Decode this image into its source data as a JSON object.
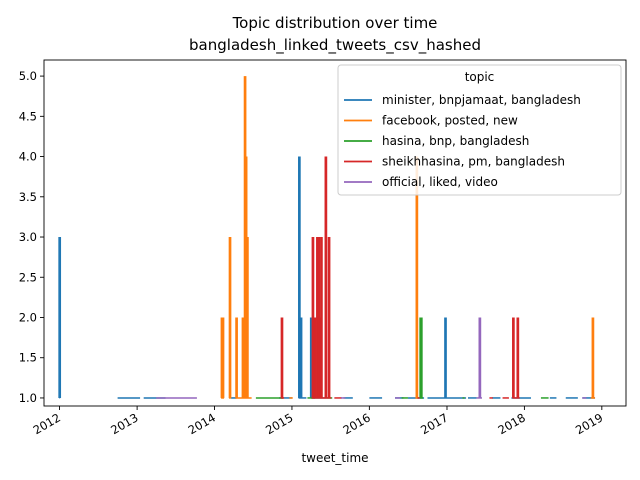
{
  "chart_data": {
    "type": "line",
    "title": "Topic distribution over time",
    "subtitle": "bangladesh_linked_tweets_csv_hashed",
    "xlabel": "tweet_time",
    "ylabel": "",
    "xlim": [
      "2011-10-20",
      "2019-04-25"
    ],
    "ylim": [
      0.9,
      5.2
    ],
    "x_ticks": [
      "2012",
      "2013",
      "2014",
      "2015",
      "2016",
      "2017",
      "2018",
      "2019"
    ],
    "y_ticks": [
      "1.0",
      "1.5",
      "2.0",
      "2.5",
      "3.0",
      "3.5",
      "4.0",
      "4.5",
      "5.0"
    ],
    "grid": false,
    "legend": {
      "title": "topic",
      "placement": "top-right"
    },
    "series": [
      {
        "name": "minister, bnpjamaat, bangladesh",
        "color": "#1f77b4",
        "spikes": [
          [
            "2012-01-02",
            3
          ],
          [
            "2015-02-05",
            4
          ],
          [
            "2015-02-08",
            2
          ],
          [
            "2015-02-13",
            2
          ],
          [
            "2015-04-02",
            2
          ],
          [
            "2016-12-25",
            2
          ]
        ],
        "baseline_segments": [
          [
            "2012-01-01",
            "2012-01-04"
          ],
          [
            "2012-10-01",
            "2013-01-15"
          ],
          [
            "2013-02-01",
            "2013-05-15"
          ],
          [
            "2014-03-20",
            "2014-04-15"
          ],
          [
            "2014-11-01",
            "2015-01-01"
          ],
          [
            "2015-02-01",
            "2015-03-10"
          ],
          [
            "2015-04-01",
            "2015-06-15"
          ],
          [
            "2015-09-01",
            "2015-10-15"
          ],
          [
            "2016-01-01",
            "2016-03-01"
          ],
          [
            "2016-05-01",
            "2016-06-10"
          ],
          [
            "2016-07-01",
            "2016-09-15"
          ],
          [
            "2016-10-01",
            "2017-04-01"
          ],
          [
            "2017-04-10",
            "2017-05-20"
          ],
          [
            "2017-08-01",
            "2017-09-10"
          ],
          [
            "2017-11-01",
            "2018-02-01"
          ],
          [
            "2018-05-01",
            "2018-06-01"
          ],
          [
            "2018-07-15",
            "2018-09-10"
          ],
          [
            "2018-10-01",
            "2018-11-30"
          ]
        ]
      },
      {
        "name": "facebook, posted, new",
        "color": "#ff7f0e",
        "spikes": [
          [
            "2014-02-05",
            2
          ],
          [
            "2014-02-10",
            2
          ],
          [
            "2014-03-15",
            3
          ],
          [
            "2014-04-15",
            2
          ],
          [
            "2014-05-15",
            2
          ],
          [
            "2014-05-25",
            5
          ],
          [
            "2014-05-30",
            4
          ],
          [
            "2014-06-05",
            3
          ],
          [
            "2016-08-12",
            4
          ],
          [
            "2018-11-20",
            2
          ]
        ],
        "baseline_segments": [
          [
            "2014-02-01",
            "2014-02-15"
          ],
          [
            "2014-03-10",
            "2014-03-20"
          ],
          [
            "2014-04-10",
            "2014-06-25"
          ],
          [
            "2014-12-20",
            "2015-01-05"
          ],
          [
            "2016-08-05",
            "2016-08-20"
          ],
          [
            "2018-11-10",
            "2018-11-30"
          ]
        ]
      },
      {
        "name": "hasina, bnp, bangladesh",
        "color": "#2ca02c",
        "spikes": [
          [
            "2016-08-30",
            2
          ],
          [
            "2016-09-02",
            2
          ]
        ],
        "baseline_segments": [
          [
            "2014-07-15",
            "2014-11-20"
          ],
          [
            "2015-03-15",
            "2015-04-20"
          ],
          [
            "2015-06-15",
            "2015-07-10"
          ],
          [
            "2016-06-01",
            "2016-07-01"
          ],
          [
            "2016-08-25",
            "2016-09-10"
          ],
          [
            "2017-03-15",
            "2017-03-25"
          ],
          [
            "2018-03-20",
            "2018-04-25"
          ]
        ]
      },
      {
        "name": "sheikhhasina, pm, bangladesh",
        "color": "#d62728",
        "spikes": [
          [
            "2014-11-15",
            2
          ],
          [
            "2015-04-10",
            3
          ],
          [
            "2015-04-20",
            2
          ],
          [
            "2015-05-01",
            3
          ],
          [
            "2015-05-08",
            3
          ],
          [
            "2015-05-15",
            2
          ],
          [
            "2015-05-20",
            3
          ],
          [
            "2015-06-10",
            4
          ],
          [
            "2015-06-25",
            3
          ],
          [
            "2017-11-10",
            2
          ],
          [
            "2017-12-01",
            2
          ]
        ],
        "baseline_segments": [
          [
            "2014-11-10",
            "2014-11-25"
          ],
          [
            "2015-04-05",
            "2015-07-05"
          ],
          [
            "2015-07-20",
            "2015-08-25"
          ],
          [
            "2016-08-15",
            "2016-08-25"
          ],
          [
            "2017-07-20",
            "2017-08-05"
          ],
          [
            "2017-09-20",
            "2017-10-20"
          ],
          [
            "2017-11-05",
            "2017-12-10"
          ]
        ]
      },
      {
        "name": "official, liked, video",
        "color": "#9467bd",
        "spikes": [
          [
            "2017-06-05",
            2
          ]
        ],
        "baseline_segments": [
          [
            "2013-04-01",
            "2013-10-10"
          ],
          [
            "2015-08-20",
            "2015-09-10"
          ],
          [
            "2016-05-01",
            "2016-05-25"
          ],
          [
            "2017-05-20",
            "2017-06-15"
          ],
          [
            "2018-10-01",
            "2018-10-20"
          ]
        ]
      }
    ]
  }
}
